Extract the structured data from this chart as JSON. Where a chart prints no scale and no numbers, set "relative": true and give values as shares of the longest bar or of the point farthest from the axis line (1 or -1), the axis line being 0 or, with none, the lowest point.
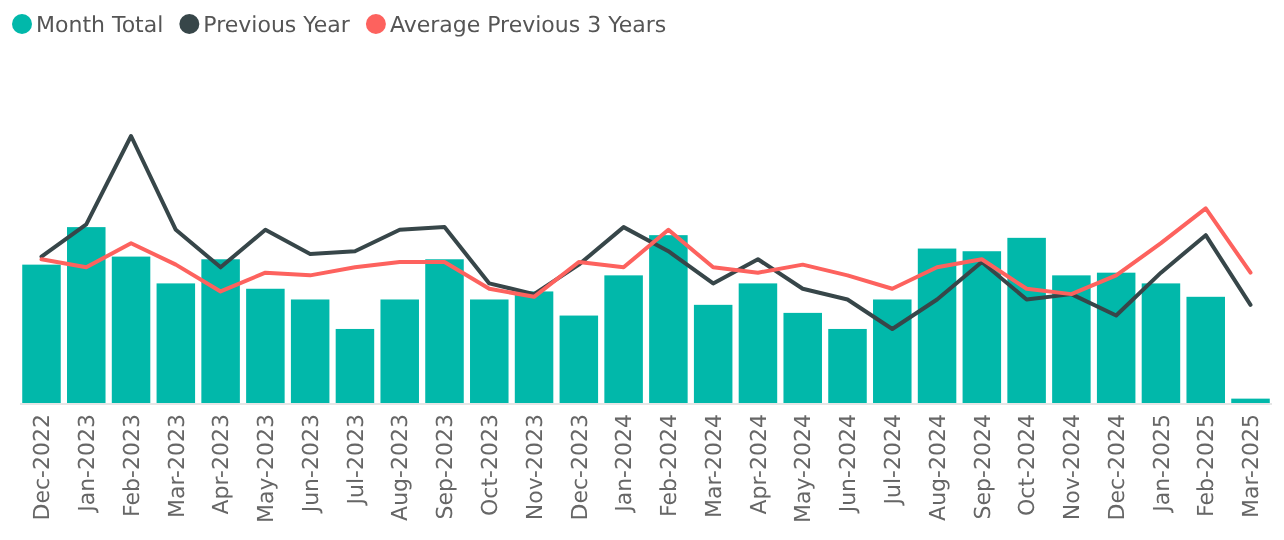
{
  "chart_data": {
    "type": "bar",
    "relative": true,
    "legend": "top left",
    "categories": [
      "Dec-2022",
      "Jan-2023",
      "Feb-2023",
      "Mar-2023",
      "Apr-2023",
      "May-2023",
      "Jun-2023",
      "Jul-2023",
      "Aug-2023",
      "Sep-2023",
      "Oct-2023",
      "Nov-2023",
      "Dec-2023",
      "Jan-2024",
      "Feb-2024",
      "Mar-2024",
      "Apr-2024",
      "May-2024",
      "Jun-2024",
      "Jul-2024",
      "Aug-2024",
      "Sep-2024",
      "Oct-2024",
      "Nov-2024",
      "Dec-2024",
      "Jan-2025",
      "Feb-2025",
      "Mar-2025"
    ],
    "series": [
      {
        "name": "Month Total",
        "color": "#01b8aa",
        "values": [
          0.52,
          0.66,
          0.55,
          0.45,
          0.54,
          0.43,
          0.39,
          0.28,
          0.39,
          0.54,
          0.39,
          0.42,
          0.33,
          0.48,
          0.63,
          0.37,
          0.45,
          0.34,
          0.28,
          0.39,
          0.58,
          0.57,
          0.62,
          0.48,
          0.49,
          0.45,
          0.4,
          0.02
        ]
      },
      {
        "name": "Previous Year",
        "type": "line",
        "color": "#374649",
        "values": [
          0.55,
          0.67,
          1,
          0.65,
          0.51,
          0.65,
          0.56,
          0.57,
          0.65,
          0.66,
          0.45,
          0.41,
          0.52,
          0.66,
          0.57,
          0.45,
          0.54,
          0.43,
          0.39,
          0.28,
          0.39,
          0.53,
          0.39,
          0.41,
          0.33,
          0.49,
          0.63,
          0.37
        ]
      },
      {
        "name": "Average Previous 3 Years",
        "type": "line",
        "color": "#fd625e",
        "values": [
          0.54,
          0.51,
          0.6,
          0.52,
          0.42,
          0.49,
          0.48,
          0.51,
          0.53,
          0.53,
          0.43,
          0.4,
          0.53,
          0.51,
          0.65,
          0.51,
          0.49,
          0.52,
          0.48,
          0.43,
          0.51,
          0.54,
          0.43,
          0.41,
          0.48,
          0.6,
          0.73,
          0.49
        ]
      }
    ]
  }
}
